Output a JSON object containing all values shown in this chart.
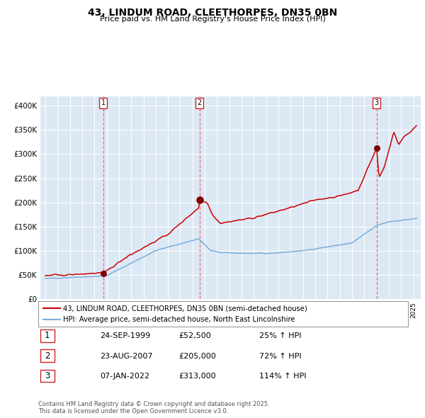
{
  "title_line1": "43, LINDUM ROAD, CLEETHORPES, DN35 0BN",
  "title_line2": "Price paid vs. HM Land Registry's House Price Index (HPI)",
  "plot_bg_color": "#dce9f5",
  "legend_entry1": "43, LINDUM ROAD, CLEETHORPES, DN35 0BN (semi-detached house)",
  "legend_entry2": "HPI: Average price, semi-detached house, North East Lincolnshire",
  "sale1_date": "24-SEP-1999",
  "sale1_price": 52500,
  "sale1_hpi": "25% ↑ HPI",
  "sale2_date": "23-AUG-2007",
  "sale2_price": 205000,
  "sale2_hpi": "72% ↑ HPI",
  "sale3_date": "07-JAN-2022",
  "sale3_price": 313000,
  "sale3_hpi": "114% ↑ HPI",
  "red_color": "#cc0000",
  "blue_color": "#7aaddb",
  "dashed_color": "#e87070",
  "footer": "Contains HM Land Registry data © Crown copyright and database right 2025.\nThis data is licensed under the Open Government Licence v3.0.",
  "ylim": [
    0,
    420000
  ],
  "yticks": [
    0,
    50000,
    100000,
    150000,
    200000,
    250000,
    300000,
    350000,
    400000
  ],
  "ytick_labels": [
    "£0",
    "£50K",
    "£100K",
    "£150K",
    "£200K",
    "£250K",
    "£300K",
    "£350K",
    "£400K"
  ],
  "sale1_x": 1999.71,
  "sale2_x": 2007.58,
  "sale3_x": 2022.0
}
